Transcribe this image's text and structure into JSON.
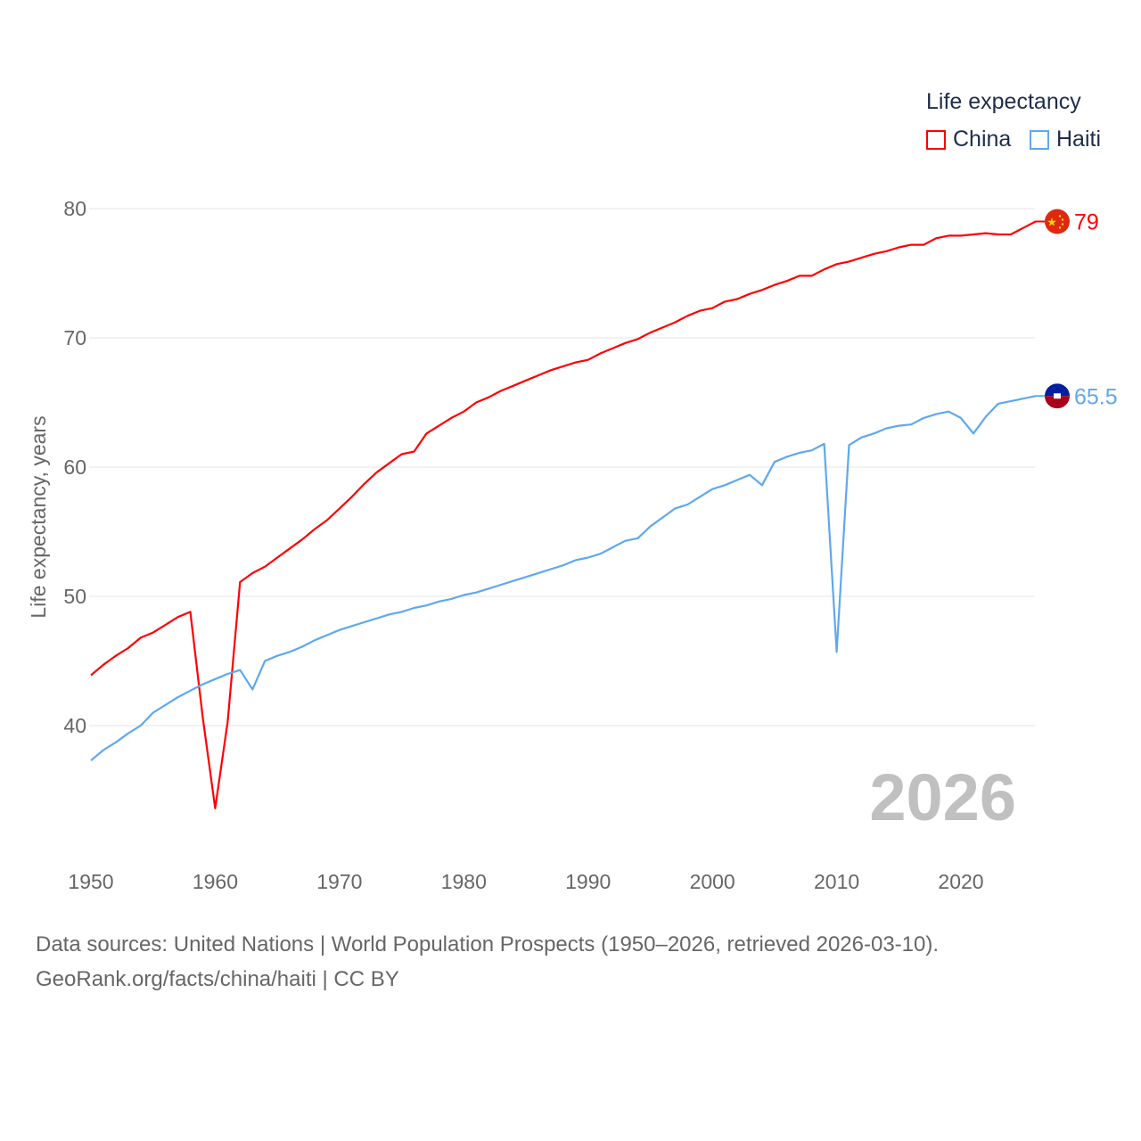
{
  "chart_data": {
    "type": "line",
    "title": "",
    "xlabel": "",
    "ylabel": "Life expectancy, years",
    "xlim": [
      1950,
      2026
    ],
    "ylim": [
      32,
      83
    ],
    "xticks": [
      1950,
      1960,
      1970,
      1980,
      1990,
      2000,
      2010,
      2020
    ],
    "yticks": [
      40,
      50,
      60,
      70,
      80
    ],
    "grid": true,
    "legend": {
      "title": "Life expectancy",
      "placement": "top-right"
    },
    "watermark_year": "2026",
    "x_start": 1950,
    "series": [
      {
        "name": "China",
        "color": "#ff0000",
        "end_label": "79",
        "values": [
          43.9,
          44.7,
          45.4,
          46.0,
          46.8,
          47.2,
          47.8,
          48.4,
          48.8,
          40.6,
          33.6,
          40.3,
          51.1,
          51.8,
          52.3,
          53.0,
          53.7,
          54.4,
          55.2,
          55.9,
          56.8,
          57.7,
          58.7,
          59.6,
          60.3,
          61.0,
          61.2,
          62.6,
          63.2,
          63.8,
          64.3,
          65.0,
          65.4,
          65.9,
          66.3,
          66.7,
          67.1,
          67.5,
          67.8,
          68.1,
          68.3,
          68.8,
          69.2,
          69.6,
          69.9,
          70.4,
          70.8,
          71.2,
          71.7,
          72.1,
          72.3,
          72.8,
          73.0,
          73.4,
          73.7,
          74.1,
          74.4,
          74.8,
          74.8,
          75.3,
          75.7,
          75.9,
          76.2,
          76.5,
          76.7,
          77.0,
          77.2,
          77.2,
          77.7,
          77.9,
          77.9,
          78.0,
          78.1,
          78.0,
          78.0,
          78.5,
          79.0
        ]
      },
      {
        "name": "Haiti",
        "color": "#5ea8ee",
        "end_label": "65.5",
        "values": [
          37.3,
          38.1,
          38.7,
          39.4,
          40.0,
          41.0,
          41.6,
          42.2,
          42.7,
          43.2,
          43.6,
          44.0,
          44.3,
          42.8,
          45.0,
          45.4,
          45.7,
          46.1,
          46.6,
          47.0,
          47.4,
          47.7,
          48.0,
          48.3,
          48.6,
          48.8,
          49.1,
          49.3,
          49.6,
          49.8,
          50.1,
          50.3,
          50.6,
          50.9,
          51.2,
          51.5,
          51.8,
          52.1,
          52.4,
          52.8,
          53.0,
          53.3,
          53.8,
          54.3,
          54.5,
          55.4,
          56.1,
          56.8,
          57.1,
          57.7,
          58.3,
          58.6,
          59.0,
          59.4,
          58.6,
          60.4,
          60.8,
          61.1,
          61.3,
          61.8,
          45.7,
          61.7,
          62.3,
          62.6,
          63.0,
          63.2,
          63.3,
          63.8,
          64.1,
          64.3,
          63.8,
          62.6,
          63.9,
          64.9,
          65.1,
          65.3,
          65.5
        ]
      }
    ]
  },
  "footer": {
    "line1": "Data sources: United Nations | World Population Prospects (1950–2026, retrieved 2026-03-10).",
    "line2": "GeoRank.org/facts/china/haiti | CC BY"
  }
}
